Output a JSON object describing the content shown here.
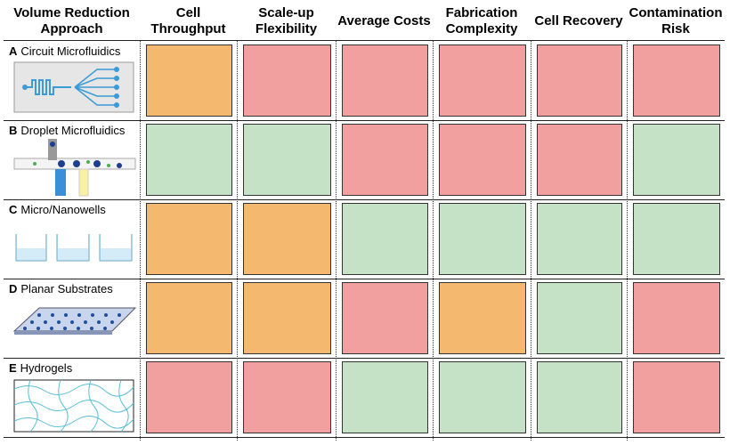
{
  "table": {
    "columns": [
      "Volume Reduction Approach",
      "Cell Throughput",
      "Scale-up Flexibility",
      "Average Costs",
      "Fabrication Complexity",
      "Cell Recovery",
      "Contamination Risk"
    ],
    "rows": [
      {
        "letter": "A",
        "label": "Circuit Microfluidics",
        "cells": [
          "#f4b86e",
          "#f2a09f",
          "#f2a09f",
          "#f2a09f",
          "#f2a09f",
          "#f2a09f"
        ]
      },
      {
        "letter": "B",
        "label": "Droplet Microfluidics",
        "cells": [
          "#c6e2c6",
          "#c6e2c6",
          "#f2a09f",
          "#f2a09f",
          "#f2a09f",
          "#c6e2c6"
        ]
      },
      {
        "letter": "C",
        "label": "Micro/Nanowells",
        "cells": [
          "#f4b86e",
          "#f4b86e",
          "#c6e2c6",
          "#c6e2c6",
          "#c6e2c6",
          "#c6e2c6"
        ]
      },
      {
        "letter": "D",
        "label": "Planar Substrates",
        "cells": [
          "#f4b86e",
          "#f4b86e",
          "#f2a09f",
          "#f4b86e",
          "#c6e2c6",
          "#f2a09f"
        ]
      },
      {
        "letter": "E",
        "label": "Hydrogels",
        "cells": [
          "#f2a09f",
          "#f2a09f",
          "#c6e2c6",
          "#c6e2c6",
          "#c6e2c6",
          "#f2a09f"
        ]
      }
    ]
  }
}
